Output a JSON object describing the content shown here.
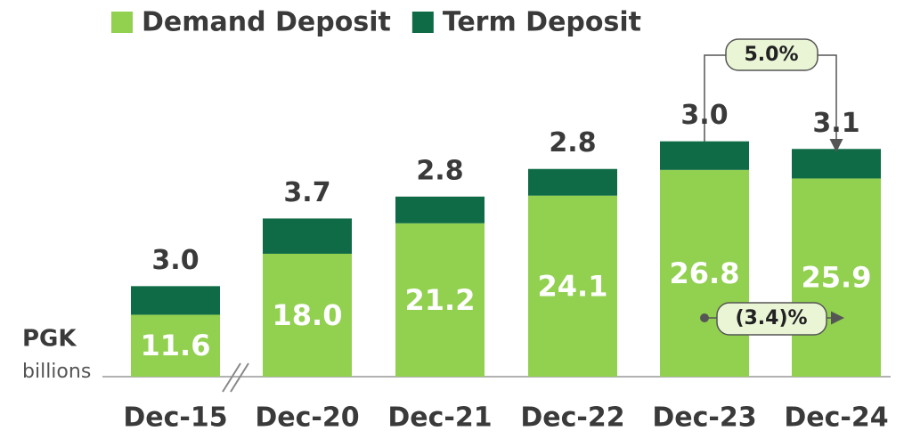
{
  "chart_data": {
    "type": "stacked_bar",
    "categories": [
      "Dec-15",
      "Dec-20",
      "Dec-21",
      "Dec-22",
      "Dec-23",
      "Dec-24"
    ],
    "series": [
      {
        "name": "Demand Deposit",
        "color": "#92d050",
        "values": [
          11.6,
          18.0,
          21.2,
          24.1,
          26.8,
          25.9
        ],
        "value_labels": [
          "11.6",
          "18.0",
          "21.2",
          "24.1",
          "26.8",
          "25.9"
        ]
      },
      {
        "name": "Term Deposit",
        "color": "#0f6b46",
        "values": [
          3.0,
          3.7,
          2.8,
          2.8,
          3.0,
          3.1
        ],
        "value_labels": [
          "3.0",
          "3.7",
          "2.8",
          "2.8",
          "3.0",
          "3.1"
        ]
      }
    ],
    "unit_label": "PGK",
    "unit_sublabel": "billions",
    "annotations": [
      "5.0%",
      "(3.4)%"
    ]
  }
}
